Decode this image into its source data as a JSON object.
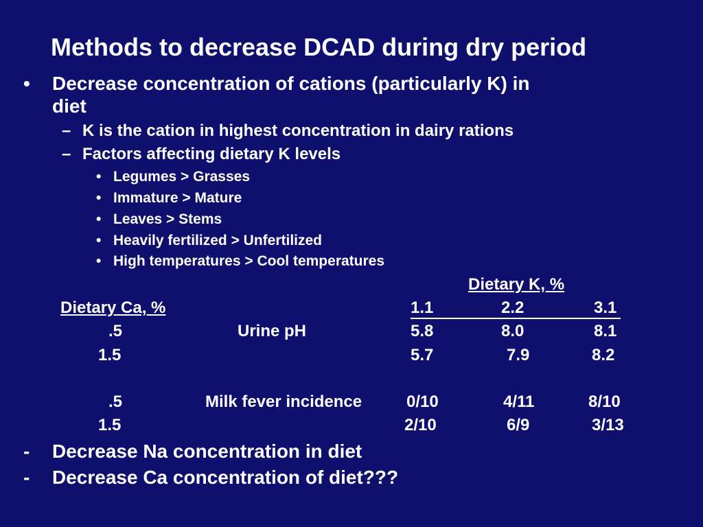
{
  "slide": {
    "title": "Methods to decrease DCAD during dry period",
    "bullet1": {
      "marker": "•",
      "text_line1": "Decrease concentration of cations (particularly K) in",
      "text_line2": "diet",
      "sub": [
        {
          "marker": "–",
          "text": "K is the cation in highest concentration in dairy rations"
        },
        {
          "marker": "–",
          "text": "Factors affecting dietary K levels"
        }
      ],
      "subsub": [
        {
          "marker": "•",
          "text": "Legumes > Grasses"
        },
        {
          "marker": "•",
          "text": "Immature > Mature"
        },
        {
          "marker": "•",
          "text": "Leaves > Stems"
        },
        {
          "marker": "•",
          "text": "Heavily fertilized > Unfertilized"
        },
        {
          "marker": "•",
          "text": "High temperatures > Cool temperatures"
        }
      ]
    },
    "table": {
      "dietary_k_header": "Dietary K, %",
      "dietary_ca_header": "Dietary Ca, %",
      "k_levels": [
        "1.1",
        "2.2",
        "3.1"
      ],
      "rows": [
        {
          "ca": ".5",
          "label": "Urine pH",
          "values": [
            "5.8",
            "8.0",
            "8.1"
          ]
        },
        {
          "ca": "1.5",
          "label": "",
          "values": [
            "5.7",
            "7.9",
            "8.2"
          ]
        },
        {
          "ca": ".5",
          "label": "Milk fever incidence",
          "values": [
            "0/10",
            "4/11",
            "8/10"
          ]
        },
        {
          "ca": "1.5",
          "label": "",
          "values": [
            "2/10",
            "6/9",
            "3/13"
          ]
        }
      ]
    },
    "bottom_bullets": [
      {
        "marker": "-",
        "text": "Decrease Na concentration in diet"
      },
      {
        "marker": "-",
        "text": "Decrease Ca concentration of diet???"
      }
    ]
  }
}
